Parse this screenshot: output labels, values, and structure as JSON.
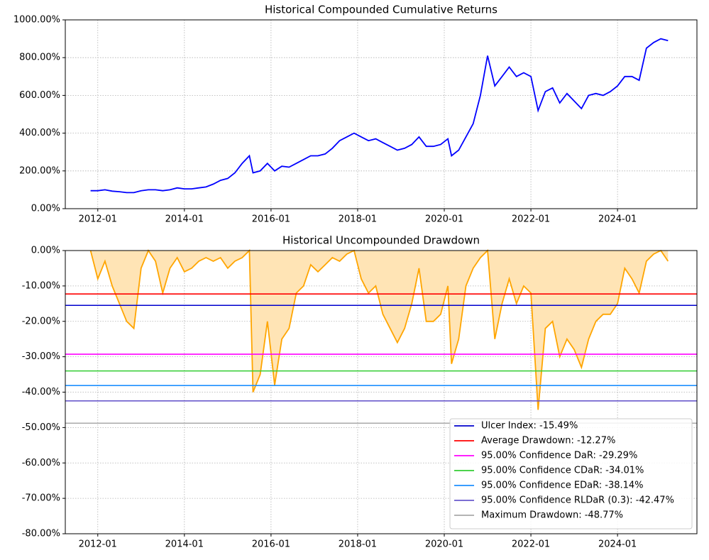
{
  "chart_data": [
    {
      "type": "line",
      "title": "Historical Compounded Cumulative Returns",
      "x": [
        "2011-11",
        "2012-01",
        "2012-03",
        "2012-05",
        "2012-07",
        "2012-09",
        "2012-11",
        "2013-01",
        "2013-03",
        "2013-05",
        "2013-07",
        "2013-09",
        "2013-11",
        "2014-01",
        "2014-03",
        "2014-05",
        "2014-07",
        "2014-09",
        "2014-11",
        "2015-01",
        "2015-03",
        "2015-05",
        "2015-07",
        "2015-08",
        "2015-10",
        "2015-12",
        "2016-02",
        "2016-04",
        "2016-06",
        "2016-08",
        "2016-10",
        "2016-12",
        "2017-02",
        "2017-04",
        "2017-06",
        "2017-08",
        "2017-10",
        "2017-12",
        "2018-02",
        "2018-04",
        "2018-06",
        "2018-08",
        "2018-10",
        "2018-12",
        "2019-02",
        "2019-04",
        "2019-06",
        "2019-08",
        "2019-10",
        "2019-12",
        "2020-02",
        "2020-03",
        "2020-05",
        "2020-07",
        "2020-09",
        "2020-11",
        "2021-01",
        "2021-03",
        "2021-05",
        "2021-07",
        "2021-09",
        "2021-11",
        "2022-01",
        "2022-03",
        "2022-05",
        "2022-07",
        "2022-09",
        "2022-11",
        "2023-01",
        "2023-03",
        "2023-05",
        "2023-07",
        "2023-09",
        "2023-11",
        "2024-01",
        "2024-03",
        "2024-05",
        "2024-07",
        "2024-09",
        "2024-11",
        "2025-01",
        "2025-03"
      ],
      "series": [
        {
          "color": "#0000ff",
          "values": [
            95,
            95,
            100,
            93,
            90,
            85,
            85,
            95,
            100,
            100,
            95,
            100,
            110,
            105,
            105,
            110,
            115,
            130,
            150,
            160,
            190,
            240,
            280,
            190,
            200,
            240,
            200,
            225,
            220,
            240,
            260,
            280,
            280,
            290,
            320,
            360,
            380,
            400,
            380,
            360,
            370,
            350,
            330,
            310,
            320,
            340,
            380,
            330,
            330,
            340,
            370,
            280,
            310,
            380,
            450,
            600,
            810,
            650,
            700,
            750,
            700,
            720,
            700,
            520,
            620,
            640,
            560,
            610,
            570,
            530,
            600,
            610,
            600,
            620,
            650,
            700,
            700,
            680,
            850,
            880,
            900,
            890
          ]
        }
      ],
      "xlim": [
        "2011-04",
        "2025-11"
      ],
      "xticks": [
        "2012-01",
        "2014-01",
        "2016-01",
        "2018-01",
        "2020-01",
        "2022-01",
        "2024-01"
      ],
      "ylim": [
        0,
        1000
      ],
      "yticks": [
        {
          "value": 0,
          "label": "0.00%"
        },
        {
          "value": 200,
          "label": "200.00%"
        },
        {
          "value": 400,
          "label": "400.00%"
        },
        {
          "value": 600,
          "label": "600.00%"
        },
        {
          "value": 800,
          "label": "800.00%"
        },
        {
          "value": 1000,
          "label": "1000.00%"
        }
      ],
      "grid": true
    },
    {
      "type": "area",
      "title": "Historical Uncompounded Drawdown",
      "x": [
        "2011-11",
        "2012-01",
        "2012-03",
        "2012-05",
        "2012-07",
        "2012-09",
        "2012-11",
        "2013-01",
        "2013-03",
        "2013-05",
        "2013-07",
        "2013-09",
        "2013-11",
        "2014-01",
        "2014-03",
        "2014-05",
        "2014-07",
        "2014-09",
        "2014-11",
        "2015-01",
        "2015-03",
        "2015-05",
        "2015-07",
        "2015-08",
        "2015-10",
        "2015-12",
        "2016-02",
        "2016-04",
        "2016-06",
        "2016-08",
        "2016-10",
        "2016-12",
        "2017-02",
        "2017-04",
        "2017-06",
        "2017-08",
        "2017-10",
        "2017-12",
        "2018-02",
        "2018-04",
        "2018-06",
        "2018-08",
        "2018-10",
        "2018-12",
        "2019-02",
        "2019-04",
        "2019-06",
        "2019-08",
        "2019-10",
        "2019-12",
        "2020-02",
        "2020-03",
        "2020-05",
        "2020-07",
        "2020-09",
        "2020-11",
        "2021-01",
        "2021-03",
        "2021-05",
        "2021-07",
        "2021-09",
        "2021-11",
        "2022-01",
        "2022-03",
        "2022-05",
        "2022-07",
        "2022-09",
        "2022-11",
        "2023-01",
        "2023-03",
        "2023-05",
        "2023-07",
        "2023-09",
        "2023-11",
        "2024-01",
        "2024-03",
        "2024-05",
        "2024-07",
        "2024-09",
        "2024-11",
        "2025-01",
        "2025-03"
      ],
      "series": [
        {
          "color": "#ffa500",
          "fill": "#ffe4b5",
          "values": [
            0,
            -8,
            -3,
            -10,
            -15,
            -20,
            -22,
            -5,
            0,
            -3,
            -12,
            -5,
            -2,
            -6,
            -5,
            -3,
            -2,
            -3,
            -2,
            -5,
            -3,
            -2,
            0,
            -40,
            -35,
            -20,
            -38,
            -25,
            -22,
            -12,
            -10,
            -4,
            -6,
            -4,
            -2,
            -3,
            -1,
            0,
            -8,
            -12,
            -10,
            -18,
            -22,
            -26,
            -22,
            -15,
            -5,
            -20,
            -20,
            -18,
            -10,
            -32,
            -25,
            -10,
            -5,
            -2,
            0,
            -25,
            -15,
            -8,
            -15,
            -10,
            -12,
            -45,
            -22,
            -20,
            -30,
            -25,
            -28,
            -33,
            -25,
            -20,
            -18,
            -18,
            -15,
            -5,
            -8,
            -12,
            -3,
            -1,
            0,
            -3
          ]
        }
      ],
      "hlines": [
        {
          "name": "Ulcer Index: -15.49%",
          "color": "#0000cd",
          "value": -15.49
        },
        {
          "name": "Average Drawdown: -12.27%",
          "color": "#ff0000",
          "value": -12.27
        },
        {
          "name": "95.00% Confidence DaR: -29.29%",
          "color": "#ff00ff",
          "value": -29.29
        },
        {
          "name": "95.00% Confidence CDaR: -34.01%",
          "color": "#32cd32",
          "value": -34.01
        },
        {
          "name": "95.00% Confidence EDaR: -38.14%",
          "color": "#1e90ff",
          "value": -38.14
        },
        {
          "name": "95.00% Confidence RLDaR (0.3): -42.47%",
          "color": "#6a5acd",
          "value": -42.47
        },
        {
          "name": "Maximum Drawdown: -48.77%",
          "color": "#a9a9a9",
          "value": -48.77
        }
      ],
      "legend": "lower right",
      "xlim": [
        "2011-04",
        "2025-11"
      ],
      "xticks": [
        "2012-01",
        "2014-01",
        "2016-01",
        "2018-01",
        "2020-01",
        "2022-01",
        "2024-01"
      ],
      "ylim": [
        -80,
        0
      ],
      "yticks": [
        {
          "value": 0,
          "label": "0.00%"
        },
        {
          "value": -10,
          "label": "-10.00%"
        },
        {
          "value": -20,
          "label": "-20.00%"
        },
        {
          "value": -30,
          "label": "-30.00%"
        },
        {
          "value": -40,
          "label": "-40.00%"
        },
        {
          "value": -50,
          "label": "-50.00%"
        },
        {
          "value": -60,
          "label": "-60.00%"
        },
        {
          "value": -70,
          "label": "-70.00%"
        },
        {
          "value": -80,
          "label": "-80.00%"
        }
      ],
      "grid": true
    }
  ]
}
